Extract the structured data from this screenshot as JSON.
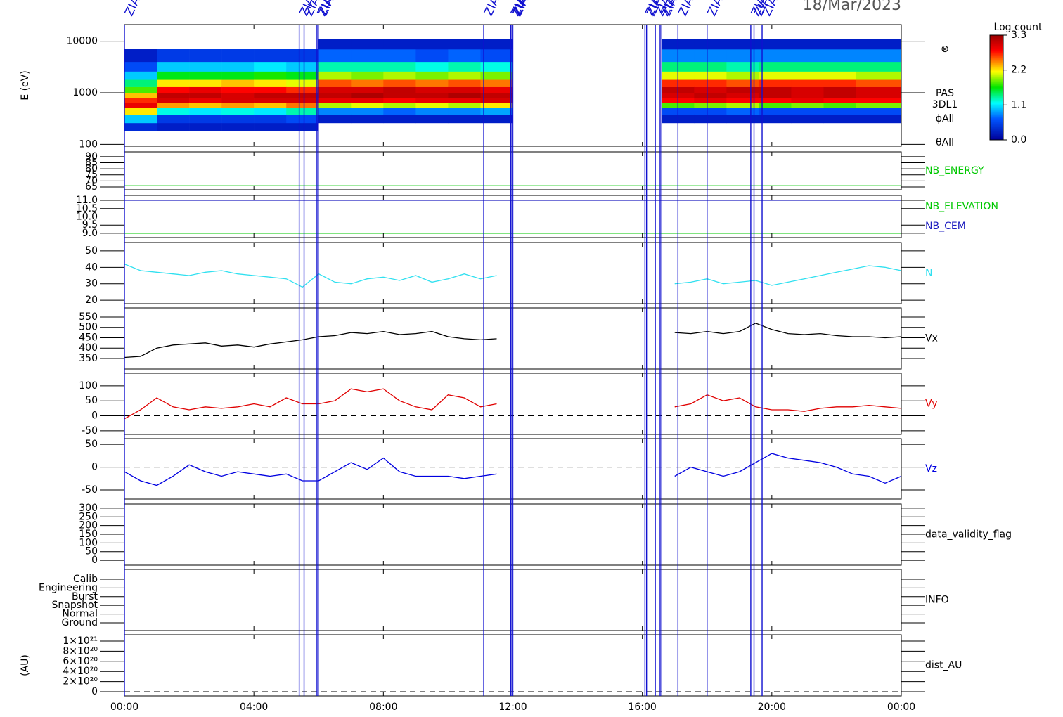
{
  "date": "18/Mar/2023",
  "time_axis": {
    "xlim": [
      0,
      24
    ],
    "xticks": [
      {
        "value": 0,
        "label": "00:00"
      },
      {
        "value": 4,
        "label": "04:00"
      },
      {
        "value": 8,
        "label": "08:00"
      },
      {
        "value": 12,
        "label": "12:00"
      },
      {
        "value": 16,
        "label": "16:00"
      },
      {
        "value": 20,
        "label": "20:00"
      },
      {
        "value": 24,
        "label": "00:00"
      }
    ]
  },
  "markers": {
    "label": "ZIAS",
    "color": "#1010d0",
    "times": [
      0,
      5.4,
      5.55,
      5.95,
      5.99,
      11.1,
      11.93,
      11.97,
      12.0,
      16.08,
      16.13,
      16.4,
      16.55,
      16.6,
      17.1,
      18.0,
      19.35,
      19.45,
      19.7
    ]
  },
  "chart_data": [
    {
      "type": "spectrogram",
      "ylabel": "E (eV)",
      "log": true,
      "ylim": [
        92,
        21000
      ],
      "yticks": [
        100,
        1000,
        10000
      ],
      "time_edges": [
        0,
        1,
        2,
        3,
        4,
        5,
        6,
        7,
        8,
        9,
        10,
        11,
        12,
        16.6,
        17.6,
        18.6,
        19.6,
        20.6,
        21.6,
        22.6,
        24
      ],
      "energy_edges": [
        180,
        260,
        380,
        520,
        650,
        800,
        1000,
        1300,
        1800,
        2600,
        4000,
        7000,
        11000
      ],
      "counts": [
        [
          0.4,
          1.0,
          2.2,
          2.9,
          2.7,
          2.3,
          1.8,
          1.4,
          1.0,
          0.6,
          0.3,
          null
        ],
        [
          0.3,
          0.5,
          1.2,
          2.4,
          3.0,
          3.1,
          2.8,
          2.2,
          1.6,
          1.0,
          0.5,
          null
        ],
        [
          0.3,
          0.5,
          1.1,
          2.3,
          2.9,
          3.1,
          2.9,
          2.2,
          1.6,
          1.0,
          0.5,
          null
        ],
        [
          0.3,
          0.5,
          1.2,
          2.4,
          3.0,
          3.0,
          2.8,
          2.3,
          1.6,
          1.0,
          0.5,
          null
        ],
        [
          0.3,
          0.5,
          1.1,
          2.3,
          3.0,
          3.1,
          2.8,
          2.2,
          1.7,
          1.1,
          0.5,
          null
        ],
        [
          0.3,
          0.6,
          1.3,
          2.5,
          3.0,
          3.1,
          2.7,
          2.1,
          1.6,
          1.0,
          0.5,
          null
        ],
        [
          null,
          0.3,
          0.8,
          2.0,
          2.9,
          3.1,
          3.0,
          2.6,
          2.0,
          1.3,
          0.7,
          0.3
        ],
        [
          null,
          0.3,
          0.8,
          2.1,
          2.9,
          3.2,
          3.0,
          2.5,
          1.9,
          1.3,
          0.7,
          0.3
        ],
        [
          null,
          0.3,
          0.7,
          2.0,
          2.8,
          3.1,
          3.1,
          2.6,
          2.0,
          1.3,
          0.7,
          0.3
        ],
        [
          null,
          0.3,
          0.8,
          2.1,
          2.9,
          3.1,
          3.0,
          2.5,
          1.9,
          1.2,
          0.6,
          0.3
        ],
        [
          null,
          0.3,
          0.8,
          2.0,
          2.9,
          3.2,
          3.0,
          2.6,
          2.0,
          1.3,
          0.7,
          0.3
        ],
        [
          null,
          0.3,
          0.9,
          2.2,
          3.0,
          3.1,
          2.9,
          2.5,
          1.9,
          1.2,
          0.6,
          0.3
        ],
        [
          null,
          null,
          null,
          null,
          null,
          null,
          null,
          null,
          null,
          null,
          null,
          null
        ],
        [
          null,
          0.3,
          0.6,
          1.8,
          2.8,
          3.0,
          3.1,
          2.7,
          2.1,
          1.4,
          0.8,
          0.3
        ],
        [
          null,
          0.3,
          0.6,
          1.9,
          2.9,
          3.1,
          3.0,
          2.7,
          2.1,
          1.4,
          0.8,
          0.3
        ],
        [
          null,
          0.3,
          0.7,
          2.0,
          2.8,
          3.0,
          3.1,
          2.6,
          2.0,
          1.3,
          0.8,
          0.3
        ],
        [
          null,
          0.3,
          0.6,
          1.8,
          2.8,
          3.1,
          3.1,
          2.7,
          2.1,
          1.4,
          0.8,
          0.3
        ],
        [
          null,
          0.3,
          0.6,
          1.9,
          2.9,
          3.0,
          3.0,
          2.7,
          2.1,
          1.4,
          0.8,
          0.3
        ],
        [
          null,
          0.3,
          0.6,
          1.8,
          2.8,
          3.1,
          3.1,
          2.7,
          2.1,
          1.4,
          0.8,
          0.3
        ],
        [
          null,
          0.3,
          0.6,
          1.9,
          2.8,
          3.0,
          3.0,
          2.6,
          2.0,
          1.4,
          0.8,
          0.3
        ]
      ],
      "colorbar": {
        "title": "Log count",
        "lim": [
          0,
          3.3
        ],
        "ticks": [
          {
            "value": 0,
            "label": "0.0"
          },
          1.1,
          2.2,
          3.3
        ]
      },
      "labels_right": [
        "⊗",
        "PAS",
        "3DL1",
        "ϕAll",
        "θAll"
      ]
    },
    {
      "type": "line",
      "ylim": [
        62.7,
        94
      ],
      "yticks": [
        65,
        70,
        75,
        80,
        85,
        90
      ],
      "x": [
        0,
        24
      ],
      "series": [
        {
          "name": "NB_ENERGY",
          "color": "#00c800",
          "values": [
            66,
            66
          ]
        }
      ]
    },
    {
      "type": "line",
      "ylim": [
        8.74,
        11.3
      ],
      "yticks": [
        {
          "value": 9,
          "label": "9.0"
        },
        9.5,
        {
          "value": 10,
          "label": "10.0"
        },
        10.5,
        {
          "value": 11,
          "label": "11.0"
        }
      ],
      "x": [
        0,
        24
      ],
      "series": [
        {
          "name": "NB_ELEVATION",
          "color": "#00c800",
          "values": [
            9,
            9
          ]
        },
        {
          "name": "NB_CEM",
          "color": "#2020c0",
          "values": [
            11,
            11
          ]
        }
      ]
    },
    {
      "type": "line",
      "ylim": [
        17.9,
        55.1
      ],
      "yticks": [
        20,
        30,
        40,
        50
      ],
      "x": [
        0,
        0.5,
        1,
        1.5,
        2,
        2.5,
        3,
        3.5,
        4,
        4.5,
        5,
        5.5,
        6,
        6.5,
        7,
        7.5,
        8,
        8.5,
        9,
        9.5,
        10,
        10.5,
        11,
        11.5,
        12,
        12.5,
        13,
        13.5,
        14,
        14.5,
        15,
        15.5,
        16,
        16.5,
        17,
        17.5,
        18,
        18.5,
        19,
        19.5,
        20,
        20.5,
        21,
        21.5,
        22,
        22.5,
        23,
        23.5,
        24
      ],
      "series": [
        {
          "name": "N",
          "color": "#30e0f0",
          "values": [
            42,
            38,
            37,
            36,
            35,
            37,
            38,
            36,
            35,
            34,
            33,
            28,
            36,
            31,
            30,
            33,
            34,
            32,
            35,
            31,
            33,
            36,
            33,
            35,
            null,
            null,
            null,
            null,
            null,
            null,
            null,
            null,
            null,
            null,
            30,
            31,
            33,
            30,
            31,
            32,
            29,
            31,
            33,
            35,
            37,
            39,
            41,
            40,
            38
          ]
        }
      ]
    },
    {
      "type": "line",
      "ylim": [
        299,
        594
      ],
      "yticks": [
        350,
        400,
        450,
        500,
        550
      ],
      "x": [
        0,
        0.5,
        1,
        1.5,
        2,
        2.5,
        3,
        3.5,
        4,
        4.5,
        5,
        5.5,
        6,
        6.5,
        7,
        7.5,
        8,
        8.5,
        9,
        9.5,
        10,
        10.5,
        11,
        11.5,
        12,
        12.5,
        13,
        13.5,
        14,
        14.5,
        15,
        15.5,
        16,
        16.5,
        17,
        17.5,
        18,
        18.5,
        19,
        19.5,
        20,
        20.5,
        21,
        21.5,
        22,
        22.5,
        23,
        23.5,
        24
      ],
      "series": [
        {
          "name": "Vx",
          "color": "#000000",
          "values": [
            355,
            360,
            400,
            415,
            420,
            425,
            410,
            415,
            405,
            420,
            430,
            440,
            455,
            460,
            475,
            470,
            480,
            465,
            470,
            480,
            455,
            445,
            440,
            445,
            null,
            null,
            null,
            null,
            null,
            null,
            null,
            null,
            null,
            null,
            475,
            470,
            480,
            470,
            480,
            520,
            490,
            470,
            465,
            470,
            460,
            455,
            455,
            450,
            455
          ]
        }
      ]
    },
    {
      "type": "line",
      "ylim": [
        -62,
        142
      ],
      "yticks": [
        -50,
        0,
        50,
        100
      ],
      "zero_line": true,
      "x": [
        0,
        0.5,
        1,
        1.5,
        2,
        2.5,
        3,
        3.5,
        4,
        4.5,
        5,
        5.5,
        6,
        6.5,
        7,
        7.5,
        8,
        8.5,
        9,
        9.5,
        10,
        10.5,
        11,
        11.5,
        12,
        12.5,
        13,
        13.5,
        14,
        14.5,
        15,
        15.5,
        16,
        16.5,
        17,
        17.5,
        18,
        18.5,
        19,
        19.5,
        20,
        20.5,
        21,
        21.5,
        22,
        22.5,
        23,
        23.5,
        24
      ],
      "series": [
        {
          "name": "Vy",
          "color": "#e00000",
          "values": [
            -10,
            20,
            60,
            30,
            20,
            30,
            25,
            30,
            40,
            30,
            60,
            40,
            40,
            50,
            90,
            80,
            90,
            50,
            30,
            20,
            70,
            60,
            30,
            40,
            null,
            null,
            null,
            null,
            null,
            null,
            null,
            null,
            null,
            null,
            30,
            40,
            70,
            50,
            60,
            30,
            20,
            20,
            15,
            25,
            30,
            30,
            35,
            30,
            25
          ]
        }
      ]
    },
    {
      "type": "line",
      "ylim": [
        -70,
        62.5
      ],
      "yticks": [
        -50,
        0,
        50
      ],
      "zero_line": true,
      "x": [
        0,
        0.5,
        1,
        1.5,
        2,
        2.5,
        3,
        3.5,
        4,
        4.5,
        5,
        5.5,
        6,
        6.5,
        7,
        7.5,
        8,
        8.5,
        9,
        9.5,
        10,
        10.5,
        11,
        11.5,
        12,
        12.5,
        13,
        13.5,
        14,
        14.5,
        15,
        15.5,
        16,
        16.5,
        17,
        17.5,
        18,
        18.5,
        19,
        19.5,
        20,
        20.5,
        21,
        21.5,
        22,
        22.5,
        23,
        23.5,
        24
      ],
      "series": [
        {
          "name": "Vz",
          "color": "#0000e0",
          "values": [
            -10,
            -30,
            -40,
            -20,
            5,
            -10,
            -20,
            -10,
            -15,
            -20,
            -15,
            -30,
            -30,
            -10,
            10,
            -5,
            20,
            -10,
            -20,
            -20,
            -20,
            -25,
            -20,
            -15,
            null,
            null,
            null,
            null,
            null,
            null,
            null,
            null,
            null,
            null,
            -20,
            0,
            -10,
            -20,
            -10,
            10,
            30,
            20,
            15,
            10,
            0,
            -15,
            -20,
            -35,
            -20
          ]
        }
      ]
    },
    {
      "type": "line",
      "ylim": [
        -28,
        324
      ],
      "yticks": [
        0,
        50,
        100,
        150,
        200,
        250,
        300
      ],
      "labels_right": [
        "data_validity_flag"
      ]
    },
    {
      "type": "category",
      "ylim": [
        -0.89,
        6.13
      ],
      "yticks": [
        {
          "value": 5,
          "label": "Calib"
        },
        {
          "value": 4,
          "label": "Engineering"
        },
        {
          "value": 3,
          "label": "Burst"
        },
        {
          "value": 2,
          "label": "Snapshot"
        },
        {
          "value": 1,
          "label": "Normal"
        },
        {
          "value": 0,
          "label": "Ground"
        }
      ],
      "labels_right": [
        "INFO"
      ]
    },
    {
      "type": "line",
      "ylabel": "(AU)",
      "ylim": [
        -8.3e+19,
        1.125e+21
      ],
      "zero_line": true,
      "yticks": [
        0,
        {
          "value": 2e+20,
          "label": "2×10²⁰"
        },
        {
          "value": 4e+20,
          "label": "4×10²⁰"
        },
        {
          "value": 6e+20,
          "label": "6×10²⁰"
        },
        {
          "value": 8e+20,
          "label": "8×10²⁰"
        },
        {
          "value": 1e+21,
          "label": "1×10²¹"
        }
      ],
      "labels_right": [
        "dist_AU"
      ]
    }
  ]
}
